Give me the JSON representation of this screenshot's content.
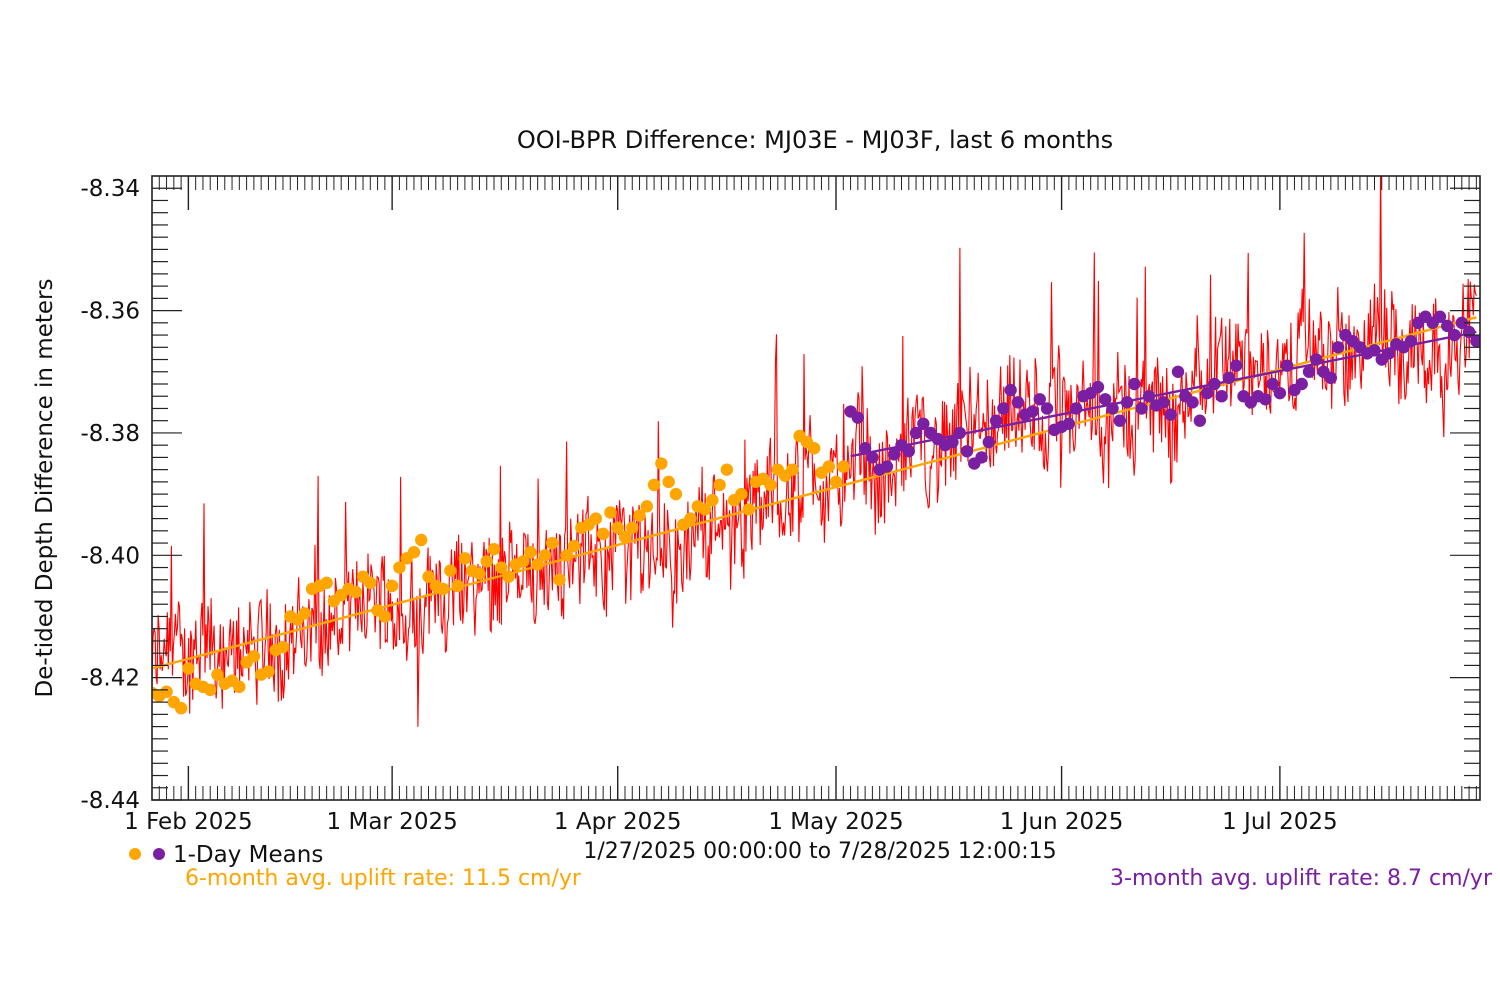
{
  "chart_data": {
    "type": "line",
    "title": "OOI-BPR Difference: MJ03E - MJ03F, last 6 months",
    "ylabel": "De-tided Depth Difference in meters",
    "xlabel": "",
    "x_range": [
      "2025-01-27T00:00:00",
      "2025-07-28T12:00:15"
    ],
    "date_range_text": "1/27/2025 00:00:00 to  7/28/2025 12:00:15",
    "ylim": [
      -8.44,
      -8.338
    ],
    "y_ticks": [
      -8.44,
      -8.42,
      -8.4,
      -8.38,
      -8.36,
      -8.34
    ],
    "y_tick_labels": [
      "-8.44",
      "-8.42",
      "-8.40",
      "-8.38",
      "-8.36",
      "-8.34"
    ],
    "x_ticks": [
      "2025-02-01",
      "2025-03-01",
      "2025-04-01",
      "2025-05-01",
      "2025-06-01",
      "2025-07-01"
    ],
    "x_tick_labels": [
      "1 Feb 2025",
      "1 Mar 2025",
      "1 Apr 2025",
      "1 May 2025",
      "1 Jun 2025",
      "1 Jul 2025"
    ],
    "legend_label": "1-Day Means",
    "legend_position": "bottom-left",
    "series": [
      {
        "color": "#ff0000",
        "x_range": [
          "2025-01-27",
          "2025-07-28"
        ],
        "start_value": -8.419,
        "end_value": -8.362,
        "typical_spread": 0.009
      },
      {
        "color": "#ffa500",
        "marker": "circle",
        "x": [
          "2025-01-27",
          "2025-01-28",
          "2025-01-29",
          "2025-01-30",
          "2025-01-31",
          "2025-02-01",
          "2025-02-02",
          "2025-02-03",
          "2025-02-04",
          "2025-02-05",
          "2025-02-06",
          "2025-02-07",
          "2025-02-08",
          "2025-02-09",
          "2025-02-10",
          "2025-02-11",
          "2025-02-12",
          "2025-02-13",
          "2025-02-14",
          "2025-02-15",
          "2025-02-16",
          "2025-02-17",
          "2025-02-18",
          "2025-02-19",
          "2025-02-20",
          "2025-02-21",
          "2025-02-22",
          "2025-02-23",
          "2025-02-24",
          "2025-02-25",
          "2025-02-26",
          "2025-02-27",
          "2025-02-28",
          "2025-03-01",
          "2025-03-02",
          "2025-03-03",
          "2025-03-04",
          "2025-03-05",
          "2025-03-06",
          "2025-03-07",
          "2025-03-08",
          "2025-03-09",
          "2025-03-10",
          "2025-03-11",
          "2025-03-12",
          "2025-03-13",
          "2025-03-14",
          "2025-03-15",
          "2025-03-16",
          "2025-03-17",
          "2025-03-18",
          "2025-03-19",
          "2025-03-20",
          "2025-03-21",
          "2025-03-22",
          "2025-03-23",
          "2025-03-24",
          "2025-03-25",
          "2025-03-26",
          "2025-03-27",
          "2025-03-28",
          "2025-03-29",
          "2025-03-30",
          "2025-03-31",
          "2025-04-01",
          "2025-04-02",
          "2025-04-03",
          "2025-04-04",
          "2025-04-05",
          "2025-04-06",
          "2025-04-07",
          "2025-04-08",
          "2025-04-09",
          "2025-04-10",
          "2025-04-11",
          "2025-04-12",
          "2025-04-13",
          "2025-04-14",
          "2025-04-15",
          "2025-04-16",
          "2025-04-17",
          "2025-04-18",
          "2025-04-19",
          "2025-04-20",
          "2025-04-21",
          "2025-04-22",
          "2025-04-23",
          "2025-04-24",
          "2025-04-25",
          "2025-04-26",
          "2025-04-27",
          "2025-04-28",
          "2025-04-29",
          "2025-04-30",
          "2025-05-01",
          "2025-05-02"
        ],
        "values": [
          -8.4225,
          -8.423,
          -8.4223,
          -8.424,
          -8.425,
          -8.4185,
          -8.421,
          -8.4215,
          -8.422,
          -8.4195,
          -8.421,
          -8.4205,
          -8.4215,
          -8.4175,
          -8.4165,
          -8.4195,
          -8.419,
          -8.4155,
          -8.415,
          -8.41,
          -8.4105,
          -8.4095,
          -8.4055,
          -8.405,
          -8.4045,
          -8.4075,
          -8.4065,
          -8.4055,
          -8.406,
          -8.4035,
          -8.4045,
          -8.409,
          -8.41,
          -8.405,
          -8.402,
          -8.4005,
          -8.3995,
          -8.3975,
          -8.4035,
          -8.405,
          -8.4055,
          -8.4025,
          -8.405,
          -8.4005,
          -8.4025,
          -8.403,
          -8.401,
          -8.399,
          -8.402,
          -8.4035,
          -8.4015,
          -8.401,
          -8.3995,
          -8.4015,
          -8.4,
          -8.398,
          -8.404,
          -8.4,
          -8.3985,
          -8.3955,
          -8.395,
          -8.394,
          -8.3965,
          -8.393,
          -8.3955,
          -8.397,
          -8.3955,
          -8.3935,
          -8.392,
          -8.3885,
          -8.385,
          -8.388,
          -8.39,
          -8.395,
          -8.394,
          -8.392,
          -8.3925,
          -8.391,
          -8.3885,
          -8.386,
          -8.391,
          -8.39,
          -8.3925,
          -8.388,
          -8.3875,
          -8.3885,
          -8.386,
          -8.387,
          -8.386,
          -8.3805,
          -8.3815,
          -8.3825,
          -8.3865,
          -8.3855,
          -8.388,
          -8.3855
        ]
      },
      {
        "color": "#7b1fa2",
        "marker": "circle",
        "x": [
          "2025-05-03",
          "2025-05-04",
          "2025-05-05",
          "2025-05-06",
          "2025-05-07",
          "2025-05-08",
          "2025-05-09",
          "2025-05-10",
          "2025-05-11",
          "2025-05-12",
          "2025-05-13",
          "2025-05-14",
          "2025-05-15",
          "2025-05-16",
          "2025-05-17",
          "2025-05-18",
          "2025-05-19",
          "2025-05-20",
          "2025-05-21",
          "2025-05-22",
          "2025-05-23",
          "2025-05-24",
          "2025-05-25",
          "2025-05-26",
          "2025-05-27",
          "2025-05-28",
          "2025-05-29",
          "2025-05-30",
          "2025-05-31",
          "2025-06-01",
          "2025-06-02",
          "2025-06-03",
          "2025-06-04",
          "2025-06-05",
          "2025-06-06",
          "2025-06-07",
          "2025-06-08",
          "2025-06-09",
          "2025-06-10",
          "2025-06-11",
          "2025-06-12",
          "2025-06-13",
          "2025-06-14",
          "2025-06-15",
          "2025-06-16",
          "2025-06-17",
          "2025-06-18",
          "2025-06-19",
          "2025-06-20",
          "2025-06-21",
          "2025-06-22",
          "2025-06-23",
          "2025-06-24",
          "2025-06-25",
          "2025-06-26",
          "2025-06-27",
          "2025-06-28",
          "2025-06-29",
          "2025-06-30",
          "2025-07-01",
          "2025-07-02",
          "2025-07-03",
          "2025-07-04",
          "2025-07-05",
          "2025-07-06",
          "2025-07-07",
          "2025-07-08",
          "2025-07-09",
          "2025-07-10",
          "2025-07-11",
          "2025-07-12",
          "2025-07-13",
          "2025-07-14",
          "2025-07-15",
          "2025-07-16",
          "2025-07-17",
          "2025-07-18",
          "2025-07-19",
          "2025-07-20",
          "2025-07-21",
          "2025-07-22",
          "2025-07-23",
          "2025-07-24",
          "2025-07-25",
          "2025-07-26",
          "2025-07-27",
          "2025-07-28"
        ],
        "values": [
          -8.3765,
          -8.3775,
          -8.3825,
          -8.384,
          -8.386,
          -8.3855,
          -8.3835,
          -8.382,
          -8.383,
          -8.38,
          -8.3785,
          -8.38,
          -8.381,
          -8.382,
          -8.3815,
          -8.38,
          -8.383,
          -8.385,
          -8.384,
          -8.3815,
          -8.378,
          -8.376,
          -8.373,
          -8.375,
          -8.377,
          -8.3765,
          -8.3745,
          -8.376,
          -8.3795,
          -8.379,
          -8.3785,
          -8.376,
          -8.374,
          -8.3735,
          -8.3725,
          -8.3745,
          -8.376,
          -8.378,
          -8.375,
          -8.372,
          -8.376,
          -8.374,
          -8.3755,
          -8.375,
          -8.377,
          -8.37,
          -8.374,
          -8.375,
          -8.378,
          -8.3735,
          -8.372,
          -8.374,
          -8.371,
          -8.369,
          -8.374,
          -8.375,
          -8.374,
          -8.3745,
          -8.372,
          -8.3735,
          -8.369,
          -8.373,
          -8.372,
          -8.37,
          -8.368,
          -8.37,
          -8.371,
          -8.366,
          -8.364,
          -8.365,
          -8.366,
          -8.367,
          -8.3665,
          -8.368,
          -8.367,
          -8.3655,
          -8.366,
          -8.365,
          -8.362,
          -8.361,
          -8.362,
          -8.361,
          -8.3625,
          -8.364,
          -8.362,
          -8.3635,
          -8.365
        ]
      }
    ],
    "fit_lines": [
      {
        "color": "#ffa500",
        "x": [
          "2025-01-27",
          "2025-07-28"
        ],
        "values": [
          -8.4185,
          -8.3611
        ]
      },
      {
        "color": "#7b1fa2",
        "x": [
          "2025-05-03",
          "2025-07-28"
        ],
        "values": [
          -8.3838,
          -8.3635
        ]
      }
    ],
    "annotations": [
      {
        "text": "6-month avg. uplift rate:  11.5 cm/yr",
        "color": "#ffa500"
      },
      {
        "text": "3-month avg. uplift rate:   8.7 cm/yr",
        "color": "#7b1fa2"
      }
    ]
  }
}
